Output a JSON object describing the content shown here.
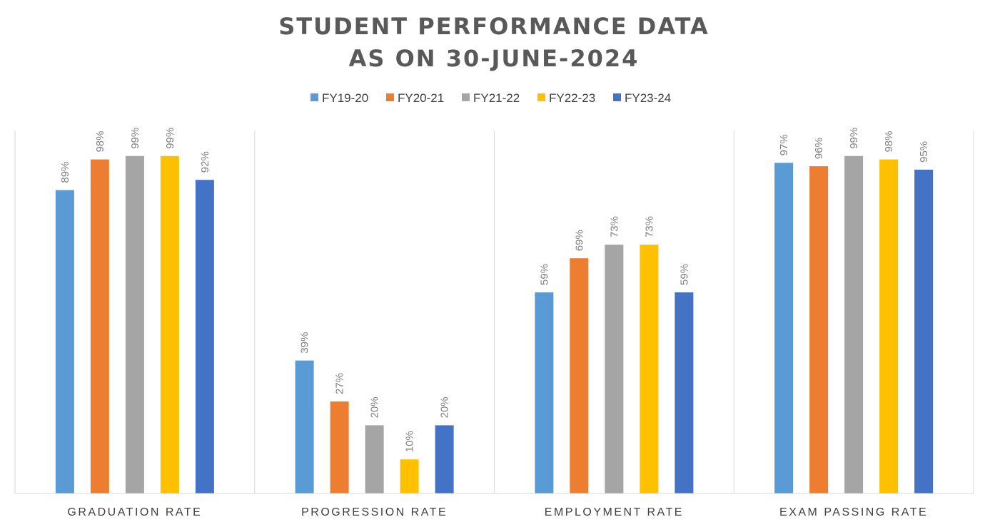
{
  "chart_data": {
    "type": "bar",
    "title": "STUDENT PERFORMANCE DATA",
    "subtitle": "AS ON 30-JUNE-2024",
    "categories": [
      "GRADUATION RATE",
      "PROGRESSION RATE",
      "EMPLOYMENT RATE",
      "EXAM PASSING RATE"
    ],
    "series": [
      {
        "name": "FY19-20",
        "color": "#5B9BD5",
        "values": [
          89,
          39,
          59,
          97
        ],
        "labels": [
          "89%",
          "39%",
          "59%",
          "97%"
        ]
      },
      {
        "name": "FY20-21",
        "color": "#ED7D31",
        "values": [
          98,
          27,
          69,
          96
        ],
        "labels": [
          "98%",
          "27%",
          "69%",
          "96%"
        ]
      },
      {
        "name": "FY21-22",
        "color": "#A5A5A5",
        "values": [
          99,
          20,
          73,
          99
        ],
        "labels": [
          "99%",
          "20%",
          "73%",
          "99%"
        ]
      },
      {
        "name": "FY22-23",
        "color": "#FFC000",
        "values": [
          99,
          10,
          73,
          98
        ],
        "labels": [
          "99%",
          "10%",
          "73%",
          "98%"
        ]
      },
      {
        "name": "FY23-24",
        "color": "#4472C4",
        "values": [
          92,
          20,
          59,
          95
        ],
        "labels": [
          "92%",
          "20%",
          "59%",
          "95%"
        ]
      }
    ],
    "ylim": [
      0,
      100
    ],
    "legend_position": "top-center",
    "grid": false,
    "category_separators": true
  }
}
